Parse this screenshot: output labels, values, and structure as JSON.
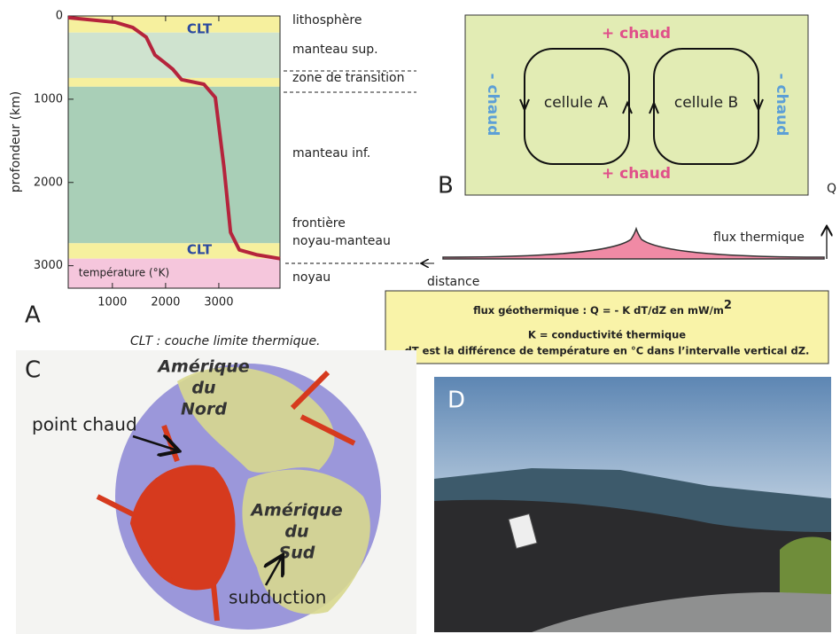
{
  "panel_a": {
    "label": "A",
    "y_label": "profondeur (km)",
    "x_label": "température (°K)",
    "ylim": [
      0,
      3270
    ],
    "xlim": [
      170,
      4150
    ],
    "yticks": [
      0,
      1000,
      2000,
      3000
    ],
    "xticks": [
      1000,
      2000,
      3000
    ],
    "layers": [
      {
        "from": 0,
        "to": 200,
        "color": "#f6f09e"
      },
      {
        "from": 200,
        "to": 745,
        "color": "#cfe3cf"
      },
      {
        "from": 745,
        "to": 850,
        "color": "#f6f09e"
      },
      {
        "from": 850,
        "to": 2730,
        "color": "#a9cfb7"
      },
      {
        "from": 2730,
        "to": 2915,
        "color": "#f6f09e"
      },
      {
        "from": 2915,
        "to": 3270,
        "color": "#f5c6dc"
      }
    ],
    "curve": {
      "color": "#b5243c",
      "temperature": [
        170,
        1050,
        1385,
        1635,
        1800,
        1970,
        2135,
        2300,
        2720,
        2935,
        3100,
        3220,
        3385,
        3720,
        4150
      ],
      "depth": [
        20,
        75,
        140,
        255,
        470,
        555,
        640,
        765,
        820,
        980,
        1830,
        2600,
        2810,
        2870,
        2915
      ]
    },
    "clt_labels": [
      "CLT",
      "CLT"
    ],
    "layer_labels": [
      "lithosphère",
      "manteau sup.",
      "zone de transition",
      "manteau inf.",
      "frontière",
      "noyau-manteau",
      "noyau"
    ],
    "caption": "CLT : couche limite thermique."
  },
  "panel_b": {
    "label": "B",
    "hot_top": "+ chaud",
    "hot_bottom": "+ chaud",
    "cold_left": "- chaud",
    "cold_right": "- chaud",
    "cell_a": "cellule A",
    "cell_b": "cellule B",
    "q": "Q",
    "flux": "flux thermique",
    "distance": "distance"
  },
  "formula": {
    "line1": "flux géothermique :  Q = - K dT/dZ en mW/m",
    "sup": "2",
    "line2": "K = conductivité thermique",
    "line3": "dT est la différence de température en °C  dans l’intervalle vertical dZ."
  },
  "panel_c": {
    "label": "C",
    "north": [
      "Amérique",
      "du",
      "Nord"
    ],
    "hotspot": "point chaud",
    "south": [
      "Amérique",
      "du",
      "Sud"
    ],
    "subduction": "subduction"
  },
  "panel_d": {
    "label": "D"
  }
}
